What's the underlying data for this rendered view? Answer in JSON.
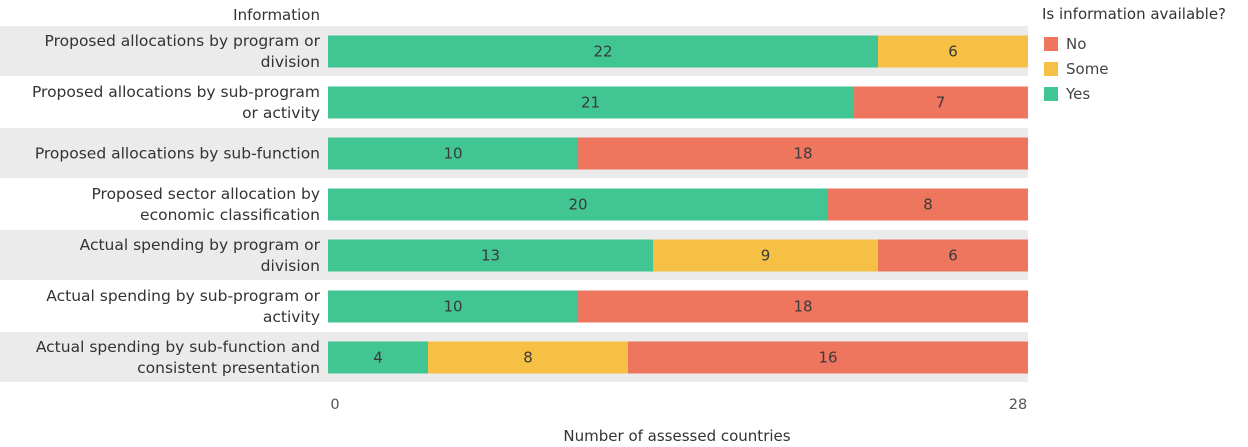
{
  "chart_data": {
    "type": "bar",
    "orientation": "horizontal",
    "stacked": true,
    "row_header": "Information",
    "xlabel": "Number of assessed countries",
    "xlim": [
      0,
      28
    ],
    "x_ticks": [
      "0",
      "28"
    ],
    "categories": [
      [
        "Proposed allocations by program or",
        "division"
      ],
      [
        "Proposed allocations by sub-program",
        "or activity"
      ],
      [
        "Proposed allocations by sub-function"
      ],
      [
        "Proposed sector allocation by",
        "economic classification"
      ],
      [
        "Actual spending by program or",
        "division"
      ],
      [
        "Actual spending by sub-program or",
        "activity"
      ],
      [
        "Actual spending by sub-function and",
        "consistent presentation"
      ]
    ],
    "stack_order": [
      "Yes",
      "Some",
      "No"
    ],
    "series": [
      {
        "name": "Yes",
        "color": "#41c592",
        "values": [
          22,
          21,
          10,
          20,
          13,
          10,
          4
        ]
      },
      {
        "name": "Some",
        "color": "#f5c044",
        "values": [
          6,
          0,
          0,
          0,
          9,
          0,
          8
        ]
      },
      {
        "name": "No",
        "color": "#ee765e",
        "values": [
          0,
          7,
          18,
          8,
          6,
          18,
          16
        ]
      }
    ],
    "legend": {
      "title": "Is information available?",
      "placement": "right",
      "items": [
        "No",
        "Some",
        "Yes"
      ]
    },
    "row_banding": true,
    "grid": false
  }
}
